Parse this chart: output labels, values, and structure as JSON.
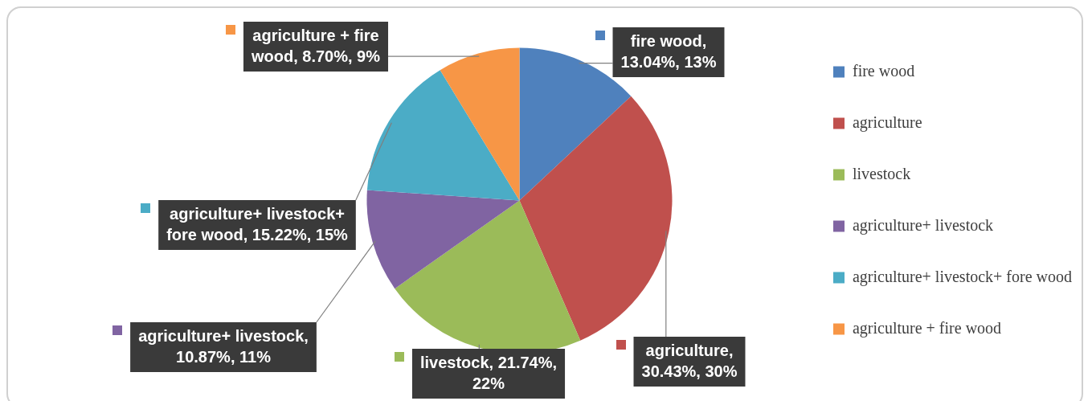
{
  "chart_data": {
    "type": "pie",
    "categories": [
      "fire wood",
      "agriculture",
      "livestock",
      "agriculture+ livestock",
      "agriculture+ livestock+ fore wood",
      "agriculture + fire wood"
    ],
    "values": [
      13.04,
      30.43,
      21.74,
      10.87,
      15.22,
      8.7
    ],
    "value_labels": [
      "fire wood, 13.04%, 13%",
      "agriculture, 30.43%, 30%",
      "livestock, 21.74%, 22%",
      "agriculture+ livestock, 10.87%, 11%",
      "agriculture+ livestock+ fore wood, 15.22%, 15%",
      "agriculture + fire wood, 8.70%, 9%"
    ],
    "colors": [
      "#4f81bd",
      "#c0504d",
      "#9bbb59",
      "#8064a2",
      "#4bacc6",
      "#f79646"
    ],
    "legend": "right"
  }
}
